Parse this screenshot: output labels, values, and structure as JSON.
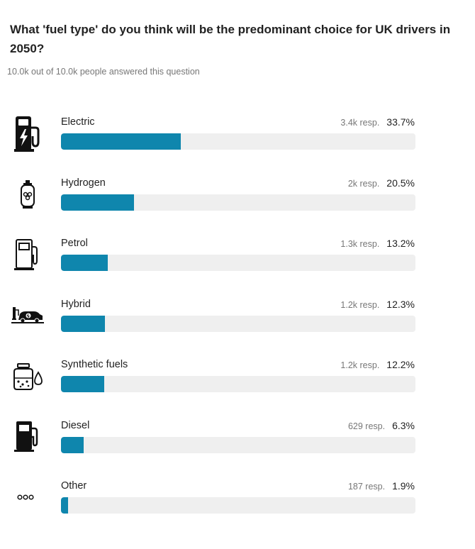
{
  "poll": {
    "question": "What 'fuel type' do you think will be the predominant choice for UK drivers in 2050?",
    "answered_text": "10.0k out of 10.0k people answered this question",
    "bar_color": "#0f86ad",
    "track_color": "#efefef",
    "options": [
      {
        "label": "Electric",
        "responses": "3.4k resp.",
        "percent_text": "33.7%",
        "percent": 33.7,
        "icon": "ev-charger-icon"
      },
      {
        "label": "Hydrogen",
        "responses": "2k resp.",
        "percent_text": "20.5%",
        "percent": 20.5,
        "icon": "hydrogen-cylinder-icon"
      },
      {
        "label": "Petrol",
        "responses": "1.3k resp.",
        "percent_text": "13.2%",
        "percent": 13.2,
        "icon": "fuel-pump-outline-icon"
      },
      {
        "label": "Hybrid",
        "responses": "1.2k resp.",
        "percent_text": "12.3%",
        "percent": 12.3,
        "icon": "car-charging-icon"
      },
      {
        "label": "Synthetic fuels",
        "responses": "1.2k resp.",
        "percent_text": "12.2%",
        "percent": 12.2,
        "icon": "jar-droplet-icon"
      },
      {
        "label": "Diesel",
        "responses": "629 resp.",
        "percent_text": "6.3%",
        "percent": 6.3,
        "icon": "fuel-pump-solid-icon"
      },
      {
        "label": "Other",
        "responses": "187 resp.",
        "percent_text": "1.9%",
        "percent": 1.9,
        "icon": "ellipsis-icon"
      }
    ]
  }
}
